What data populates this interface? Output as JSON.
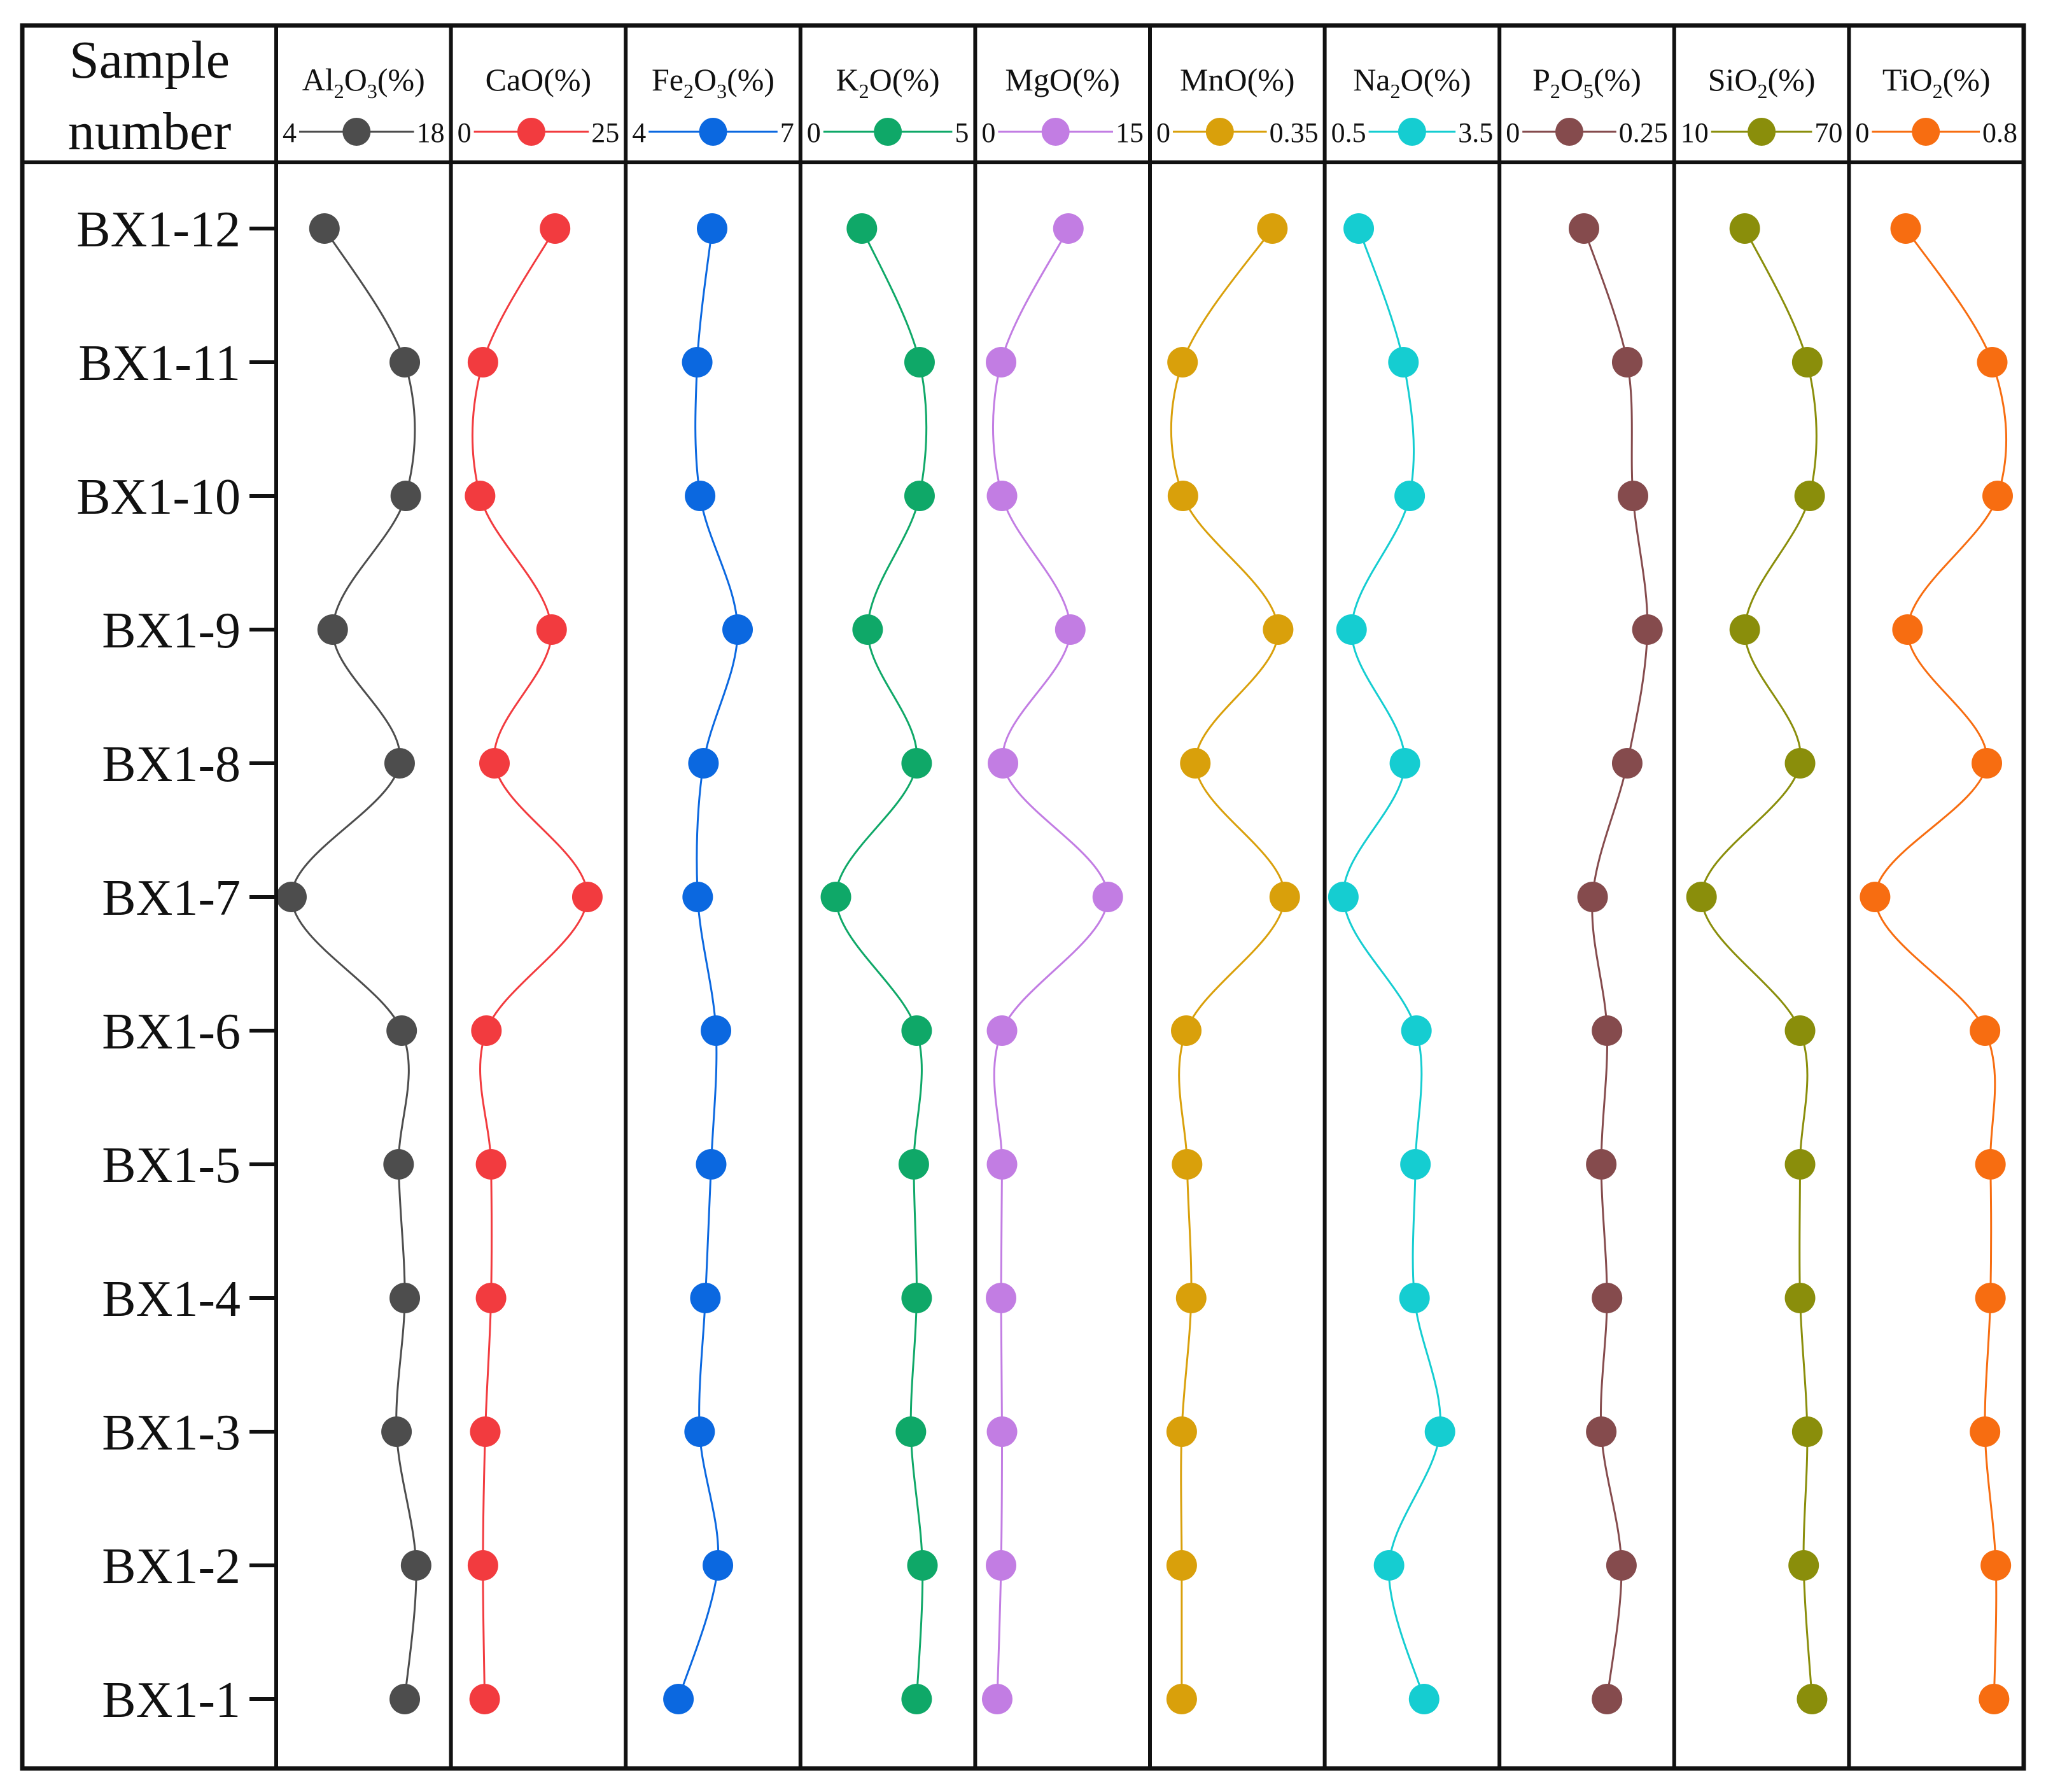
{
  "chart_data": {
    "type": "line",
    "header_title": [
      "Sample",
      "number"
    ],
    "samples": [
      "BX1-12",
      "BX1-11",
      "BX1-10",
      "BX1-9",
      "BX1-8",
      "BX1-7",
      "BX1-6",
      "BX1-5",
      "BX1-4",
      "BX1-3",
      "BX1-2",
      "BX1-1"
    ],
    "series": [
      {
        "base": "Al",
        "sub": "2",
        "base2": "O",
        "sub2": "3",
        "unit": "(%)",
        "min_label": "4",
        "max_label": "18",
        "range": [
          4,
          18
        ],
        "color": "#4d4d4d",
        "values": [
          7.2,
          15.0,
          15.1,
          8.0,
          14.5,
          4.0,
          14.7,
          14.4,
          15.0,
          14.2,
          16.1,
          15.0
        ]
      },
      {
        "base": "CaO",
        "sub": "",
        "base2": "",
        "sub2": "",
        "unit": "(%)",
        "min_label": "0",
        "max_label": "25",
        "range": [
          0,
          25
        ],
        "color": "#f23b3f",
        "values": [
          15.4,
          2.9,
          2.4,
          14.8,
          4.9,
          21.0,
          3.5,
          4.3,
          4.3,
          3.3,
          2.9,
          3.2
        ]
      },
      {
        "base": "Fe",
        "sub": "2",
        "base2": "O",
        "sub2": "3",
        "unit": "(%)",
        "min_label": "4",
        "max_label": "7",
        "range": [
          4,
          7
        ],
        "color": "#0b68e0",
        "values": [
          5.48,
          5.17,
          5.23,
          6.01,
          5.3,
          5.18,
          5.56,
          5.46,
          5.34,
          5.22,
          5.6,
          4.78
        ]
      },
      {
        "base": "K",
        "sub": "2",
        "base2": "O",
        "sub2": "",
        "unit": "(%)",
        "min_label": "0",
        "max_label": "5",
        "range": [
          0,
          5
        ],
        "color": "#0fa868",
        "values": [
          1.6,
          3.6,
          3.6,
          1.8,
          3.5,
          0.7,
          3.5,
          3.4,
          3.5,
          3.3,
          3.7,
          3.5
        ]
      },
      {
        "base": "MgO",
        "sub": "",
        "base2": "",
        "sub2": "",
        "unit": "(%)",
        "min_label": "0",
        "max_label": "15",
        "range": [
          0,
          15
        ],
        "color": "#c27de3",
        "values": [
          8.1,
          1.1,
          1.2,
          8.3,
          1.3,
          12.2,
          1.2,
          1.2,
          1.1,
          1.2,
          1.1,
          0.7
        ]
      },
      {
        "base": "MnO",
        "sub": "",
        "base2": "",
        "sub2": "",
        "unit": "(%)",
        "min_label": "0",
        "max_label": "0.35",
        "range": [
          0,
          0.35
        ],
        "color": "#d9a00b",
        "values": [
          0.26,
          0.042,
          0.043,
          0.274,
          0.073,
          0.29,
          0.051,
          0.053,
          0.063,
          0.04,
          0.04,
          0.04
        ]
      },
      {
        "base": "Na",
        "sub": "2",
        "base2": "O",
        "sub2": "",
        "unit": "(%)",
        "min_label": "0.5",
        "max_label": "3.5",
        "range": [
          0.5,
          3.5
        ],
        "color": "#15cdd1",
        "values": [
          0.89,
          1.82,
          1.95,
          0.74,
          1.85,
          0.57,
          2.09,
          2.07,
          2.05,
          2.58,
          1.52,
          2.25
        ]
      },
      {
        "base": "P",
        "sub": "2",
        "base2": "O",
        "sub2": "5",
        "unit": "(%)",
        "min_label": "0",
        "max_label": "0.25",
        "range": [
          0,
          0.25
        ],
        "color": "#854b4d",
        "values": [
          0.12,
          0.195,
          0.205,
          0.23,
          0.195,
          0.135,
          0.16,
          0.15,
          0.16,
          0.15,
          0.185,
          0.16
        ]
      },
      {
        "base": "SiO",
        "sub": "2",
        "base2": "",
        "sub2": "",
        "unit": "(%)",
        "min_label": "10",
        "max_label": "70",
        "range": [
          10,
          70
        ],
        "color": "#8a8e0b",
        "values": [
          33.0,
          59.0,
          60.0,
          33.0,
          56.0,
          15.0,
          56.0,
          56.0,
          56.0,
          59.0,
          57.5,
          61.0
        ]
      },
      {
        "base": "TiO",
        "sub": "2",
        "base2": "",
        "sub2": "",
        "unit": "(%)",
        "min_label": "0",
        "max_label": "0.8",
        "range": [
          0,
          0.8
        ],
        "color": "#f76d11",
        "values": [
          0.23,
          0.71,
          0.74,
          0.24,
          0.68,
          0.06,
          0.67,
          0.7,
          0.7,
          0.67,
          0.73,
          0.72
        ]
      }
    ],
    "grid": false,
    "legend": "header-row"
  }
}
